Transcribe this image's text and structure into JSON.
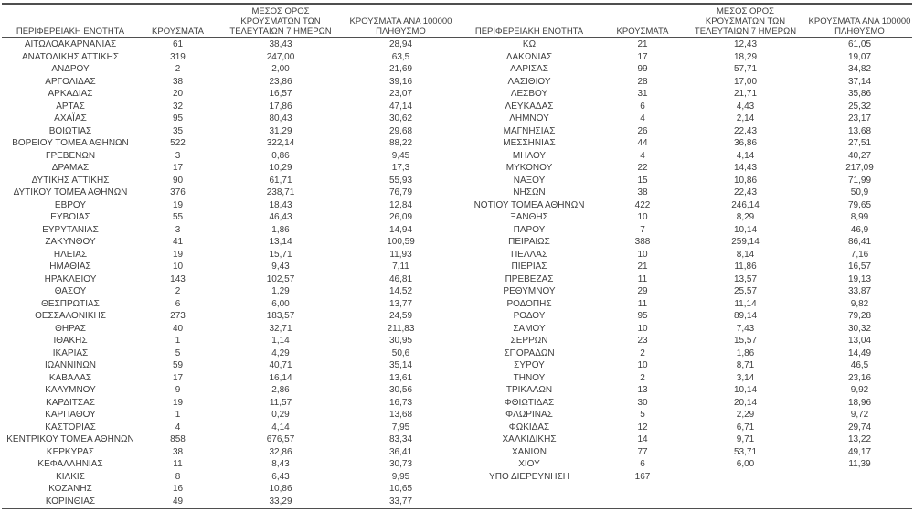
{
  "page": {
    "background": "#ffffff",
    "text_color": "#3d3d3d",
    "line_color": "#4f4f4f"
  },
  "table": {
    "headers": {
      "region": "ΠΕΡΙΦΕΡΕΙΑΚΗ ΕΝΟΤΗΤΑ",
      "cases": "ΚΡΟΥΣΜΑΤΑ",
      "avg7_line1": "ΜΕΣΟΣ ΟΡΟΣ",
      "avg7_line2": "ΚΡΟΥΣΜΑΤΩΝ ΤΩΝ",
      "avg7_line3": "ΤΕΛΕΥΤΑΙΩΝ 7 ΗΜΕΡΩΝ",
      "per100k_line1": "ΚΡΟΥΣΜΑΤΑ ΑΝΑ 100000",
      "per100k_line2": "ΠΛΗΘΥΣΜΟ"
    },
    "column_order": [
      "region",
      "cases",
      "avg7",
      "per100k"
    ],
    "left_rows": [
      [
        "ΑΙΤΩΛΟΑΚΑΡΝΑΝΙΑΣ",
        "61",
        "38,43",
        "28,94"
      ],
      [
        "ΑΝΑΤΟΛΙΚΗΣ ΑΤΤΙΚΗΣ",
        "319",
        "247,00",
        "63,5"
      ],
      [
        "ΑΝΔΡΟΥ",
        "2",
        "2,00",
        "21,69"
      ],
      [
        "ΑΡΓΟΛΙΔΑΣ",
        "38",
        "23,86",
        "39,16"
      ],
      [
        "ΑΡΚΑΔΙΑΣ",
        "20",
        "16,57",
        "23,07"
      ],
      [
        "ΑΡΤΑΣ",
        "32",
        "17,86",
        "47,14"
      ],
      [
        "ΑΧΑΪΑΣ",
        "95",
        "80,43",
        "30,62"
      ],
      [
        "ΒΟΙΩΤΙΑΣ",
        "35",
        "31,29",
        "29,68"
      ],
      [
        "ΒΟΡΕΙΟΥ ΤΟΜΕΑ ΑΘΗΝΩΝ",
        "522",
        "322,14",
        "88,22"
      ],
      [
        "ΓΡΕΒΕΝΩΝ",
        "3",
        "0,86",
        "9,45"
      ],
      [
        "ΔΡΑΜΑΣ",
        "17",
        "10,29",
        "17,3"
      ],
      [
        "ΔΥΤΙΚΗΣ ΑΤΤΙΚΗΣ",
        "90",
        "61,71",
        "55,93"
      ],
      [
        "ΔΥΤΙΚΟΥ ΤΟΜΕΑ ΑΘΗΝΩΝ",
        "376",
        "238,71",
        "76,79"
      ],
      [
        "ΕΒΡΟΥ",
        "19",
        "18,43",
        "12,84"
      ],
      [
        "ΕΥΒΟΙΑΣ",
        "55",
        "46,43",
        "26,09"
      ],
      [
        "ΕΥΡΥΤΑΝΙΑΣ",
        "3",
        "1,86",
        "14,94"
      ],
      [
        "ΖΑΚΥΝΘΟΥ",
        "41",
        "13,14",
        "100,59"
      ],
      [
        "ΗΛΕΙΑΣ",
        "19",
        "15,71",
        "11,93"
      ],
      [
        "ΗΜΑΘΙΑΣ",
        "10",
        "9,43",
        "7,11"
      ],
      [
        "ΗΡΑΚΛΕΙΟΥ",
        "143",
        "102,57",
        "46,81"
      ],
      [
        "ΘΑΣΟΥ",
        "2",
        "1,29",
        "14,52"
      ],
      [
        "ΘΕΣΠΡΩΤΙΑΣ",
        "6",
        "6,00",
        "13,77"
      ],
      [
        "ΘΕΣΣΑΛΟΝΙΚΗΣ",
        "273",
        "183,57",
        "24,59"
      ],
      [
        "ΘΗΡΑΣ",
        "40",
        "32,71",
        "211,83"
      ],
      [
        "ΙΘΑΚΗΣ",
        "1",
        "1,14",
        "30,95"
      ],
      [
        "ΙΚΑΡΙΑΣ",
        "5",
        "4,29",
        "50,6"
      ],
      [
        "ΙΩΑΝΝΙΝΩΝ",
        "59",
        "40,71",
        "35,14"
      ],
      [
        "ΚΑΒΑΛΑΣ",
        "17",
        "16,14",
        "13,61"
      ],
      [
        "ΚΑΛΥΜΝΟΥ",
        "9",
        "2,86",
        "30,56"
      ],
      [
        "ΚΑΡΔΙΤΣΑΣ",
        "19",
        "11,57",
        "16,73"
      ],
      [
        "ΚΑΡΠΑΘΟΥ",
        "1",
        "0,29",
        "13,68"
      ],
      [
        "ΚΑΣΤΟΡΙΑΣ",
        "4",
        "4,14",
        "7,95"
      ],
      [
        "ΚΕΝΤΡΙΚΟΥ ΤΟΜΕΑ ΑΘΗΝΩΝ",
        "858",
        "676,57",
        "83,34"
      ],
      [
        "ΚΕΡΚΥΡΑΣ",
        "38",
        "32,86",
        "36,41"
      ],
      [
        "ΚΕΦΑΛΛΗΝΙΑΣ",
        "11",
        "8,43",
        "30,73"
      ],
      [
        "ΚΙΛΚΙΣ",
        "8",
        "6,43",
        "9,95"
      ],
      [
        "ΚΟΖΑΝΗΣ",
        "16",
        "10,86",
        "10,65"
      ],
      [
        "ΚΟΡΙΝΘΙΑΣ",
        "49",
        "33,29",
        "33,77"
      ]
    ],
    "right_rows": [
      [
        "ΚΩ",
        "21",
        "12,43",
        "61,05"
      ],
      [
        "ΛΑΚΩΝΙΑΣ",
        "17",
        "18,29",
        "19,07"
      ],
      [
        "ΛΑΡΙΣΑΣ",
        "99",
        "57,71",
        "34,82"
      ],
      [
        "ΛΑΣΙΘΙΟΥ",
        "28",
        "17,00",
        "37,14"
      ],
      [
        "ΛΕΣΒΟΥ",
        "31",
        "21,71",
        "35,86"
      ],
      [
        "ΛΕΥΚΑΔΑΣ",
        "6",
        "4,43",
        "25,32"
      ],
      [
        "ΛΗΜΝΟΥ",
        "4",
        "2,14",
        "23,17"
      ],
      [
        "ΜΑΓΝΗΣΙΑΣ",
        "26",
        "22,43",
        "13,68"
      ],
      [
        "ΜΕΣΣΗΝΙΑΣ",
        "44",
        "36,86",
        "27,51"
      ],
      [
        "ΜΗΛΟΥ",
        "4",
        "4,14",
        "40,27"
      ],
      [
        "ΜΥΚΟΝΟΥ",
        "22",
        "14,43",
        "217,09"
      ],
      [
        "ΝΑΞΟΥ",
        "15",
        "10,86",
        "71,99"
      ],
      [
        "ΝΗΣΩΝ",
        "38",
        "22,43",
        "50,9"
      ],
      [
        "ΝΟΤΙΟΥ ΤΟΜΕΑ ΑΘΗΝΩΝ",
        "422",
        "246,14",
        "79,65"
      ],
      [
        "ΞΑΝΘΗΣ",
        "10",
        "8,29",
        "8,99"
      ],
      [
        "ΠΑΡΟΥ",
        "7",
        "10,14",
        "46,9"
      ],
      [
        "ΠΕΙΡΑΙΩΣ",
        "388",
        "259,14",
        "86,41"
      ],
      [
        "ΠΕΛΛΑΣ",
        "10",
        "8,14",
        "7,16"
      ],
      [
        "ΠΙΕΡΙΑΣ",
        "21",
        "11,86",
        "16,57"
      ],
      [
        "ΠΡΕΒΕΖΑΣ",
        "11",
        "13,57",
        "19,13"
      ],
      [
        "ΡΕΘΥΜΝΟΥ",
        "29",
        "25,57",
        "33,87"
      ],
      [
        "ΡΟΔΟΠΗΣ",
        "11",
        "11,14",
        "9,82"
      ],
      [
        "ΡΟΔΟΥ",
        "95",
        "89,14",
        "79,28"
      ],
      [
        "ΣΑΜΟΥ",
        "10",
        "7,43",
        "30,32"
      ],
      [
        "ΣΕΡΡΩΝ",
        "23",
        "15,57",
        "13,04"
      ],
      [
        "ΣΠΟΡΑΔΩΝ",
        "2",
        "1,86",
        "14,49"
      ],
      [
        "ΣΥΡΟΥ",
        "10",
        "8,71",
        "46,5"
      ],
      [
        "ΤΗΝΟΥ",
        "2",
        "3,14",
        "23,16"
      ],
      [
        "ΤΡΙΚΑΛΩΝ",
        "13",
        "10,14",
        "9,92"
      ],
      [
        "ΦΘΙΩΤΙΔΑΣ",
        "30",
        "20,14",
        "18,96"
      ],
      [
        "ΦΛΩΡΙΝΑΣ",
        "5",
        "2,29",
        "9,72"
      ],
      [
        "ΦΩΚΙΔΑΣ",
        "12",
        "6,71",
        "29,74"
      ],
      [
        "ΧΑΛΚΙΔΙΚΗΣ",
        "14",
        "9,71",
        "13,22"
      ],
      [
        "ΧΑΝΙΩΝ",
        "77",
        "53,71",
        "49,17"
      ],
      [
        "ΧΙΟΥ",
        "6",
        "6,00",
        "11,39"
      ],
      [
        "ΥΠΟ ΔΙΕΡΕΥΝΗΣΗ",
        "167",
        "",
        ""
      ]
    ]
  }
}
